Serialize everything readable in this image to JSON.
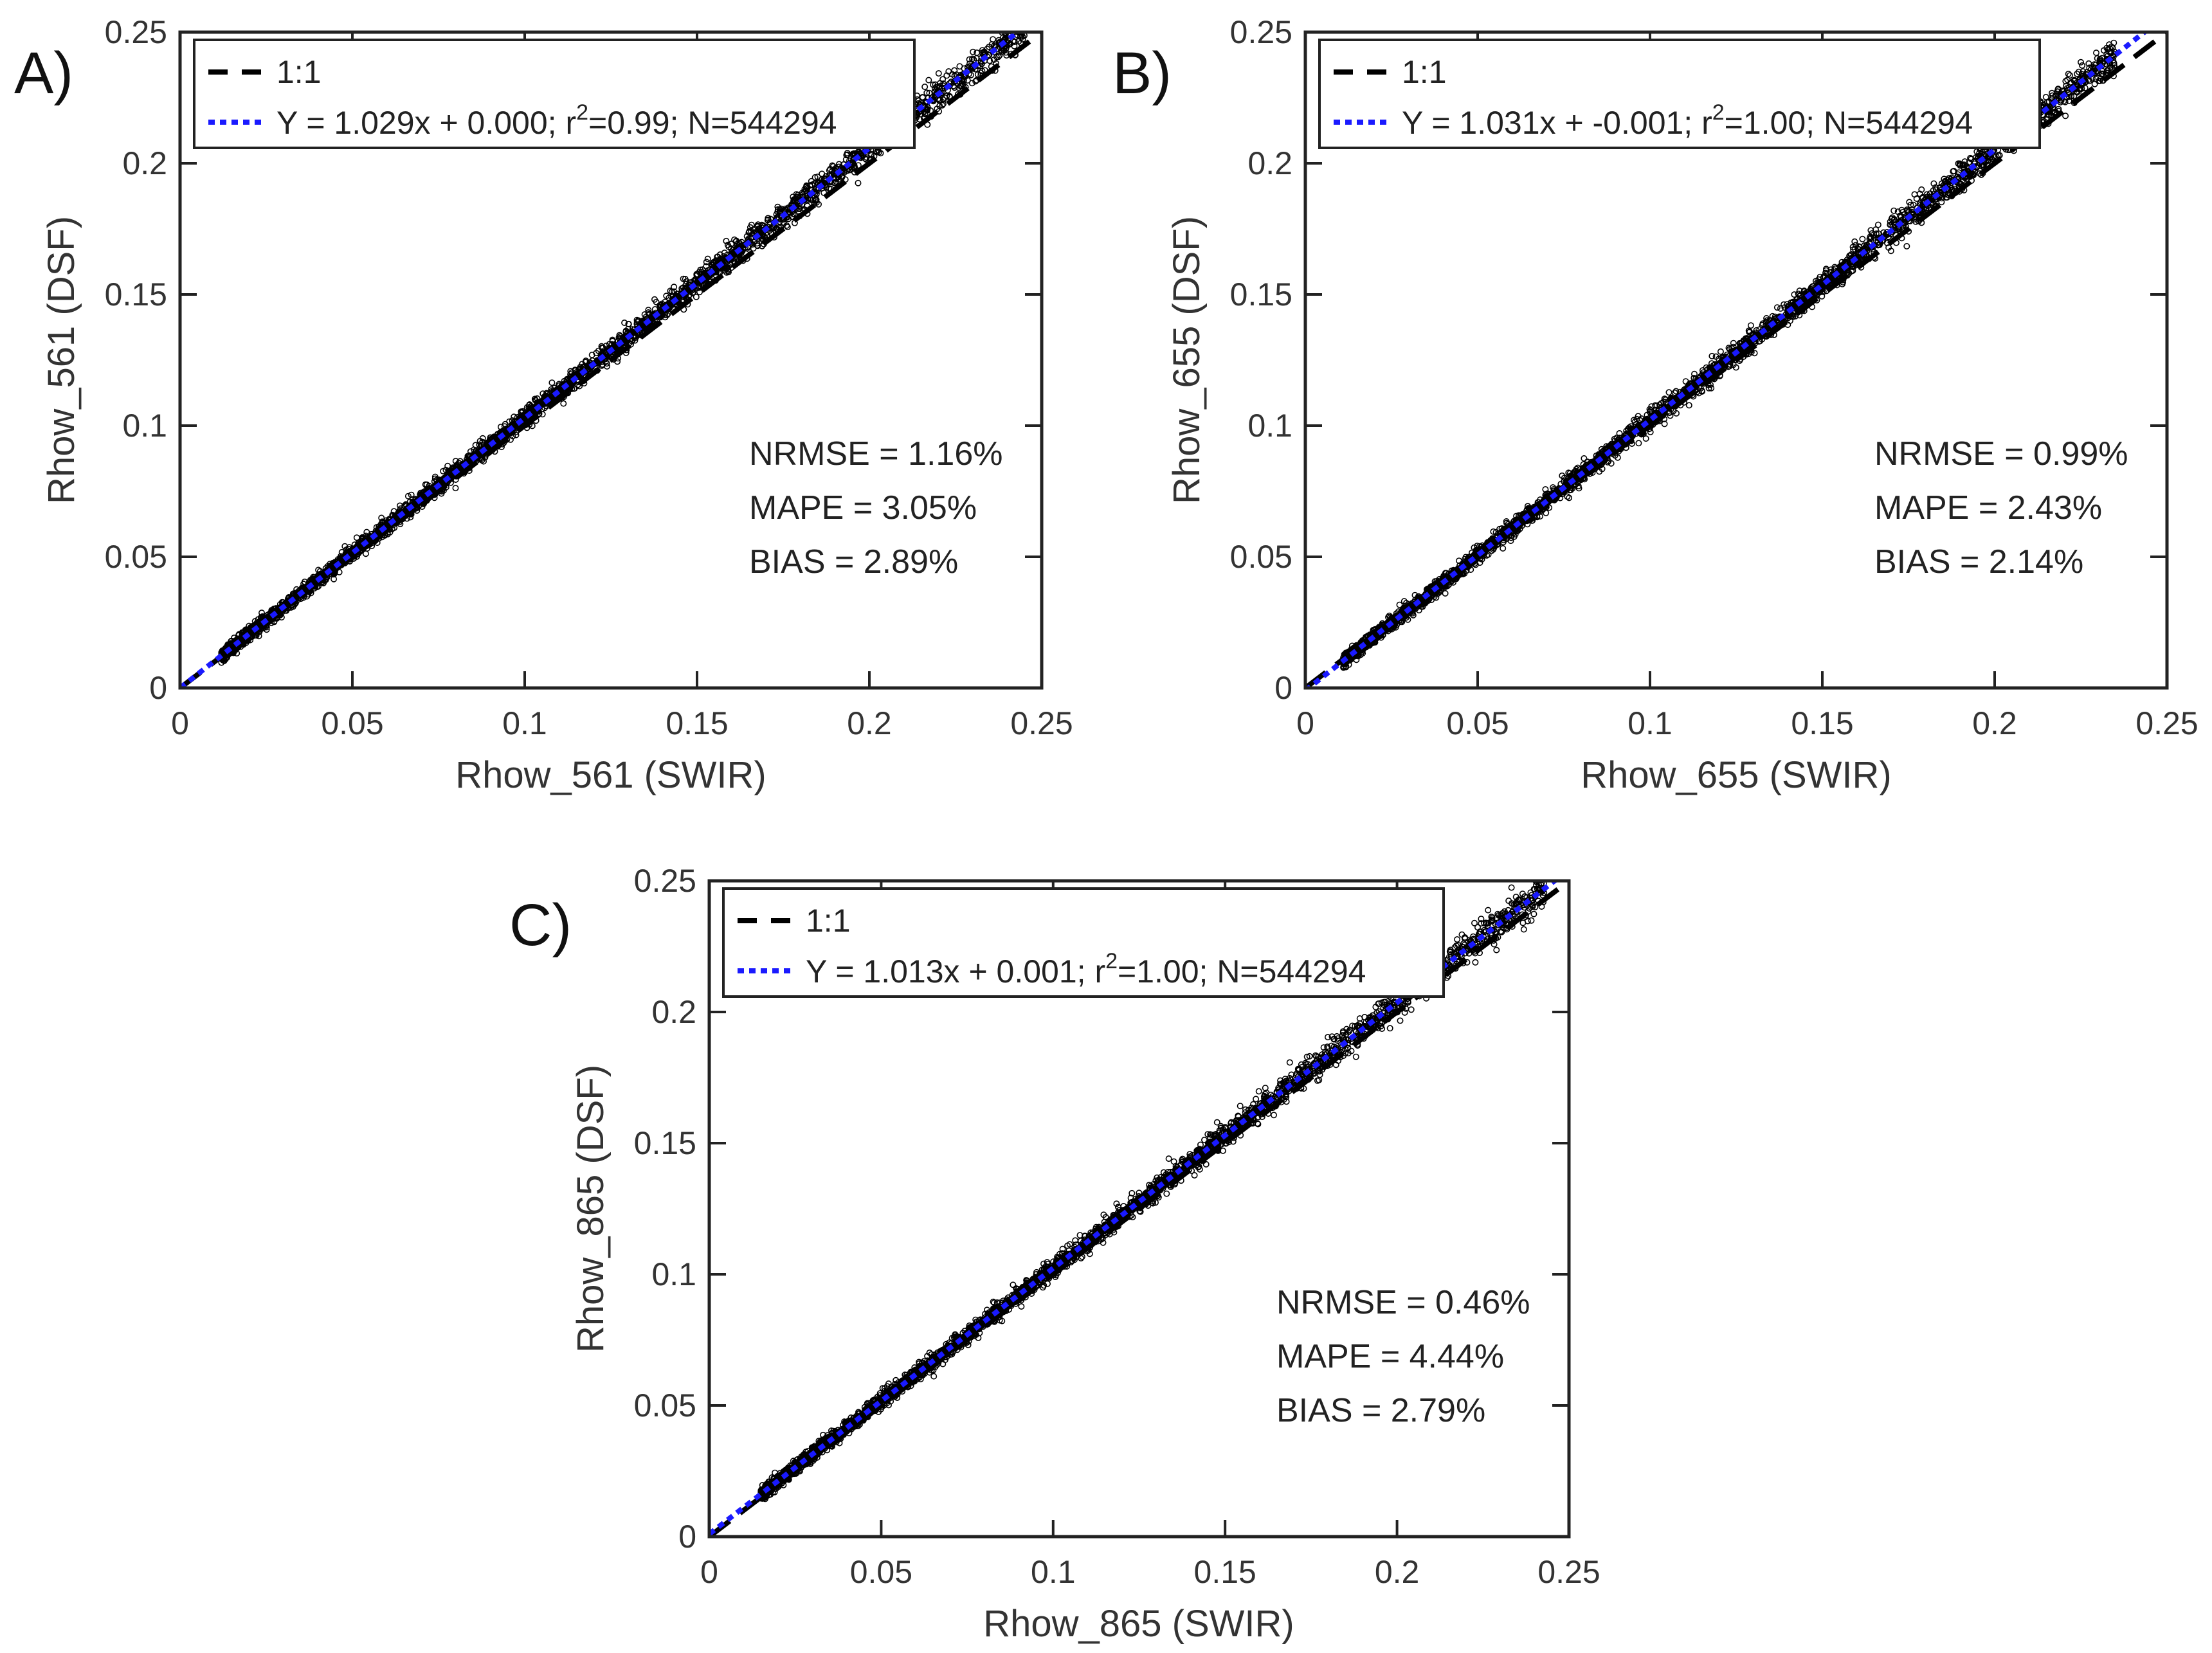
{
  "figure": {
    "panel_count": 3
  },
  "chart_data": [
    {
      "type": "scatter",
      "panel_label": "A)",
      "title": "",
      "xlabel": "Rhow_561 (SWIR)",
      "ylabel": "Rhow_561 (DSF)",
      "xlim": [
        0,
        0.25
      ],
      "ylim": [
        0,
        0.25
      ],
      "xticks": [
        "0",
        "0.05",
        "0.1",
        "0.15",
        "0.2",
        "0.25"
      ],
      "yticks": [
        "0",
        "0.05",
        "0.1",
        "0.15",
        "0.2",
        "0.25"
      ],
      "legend_position": "top-left",
      "legend": [
        {
          "label": "1:1",
          "style": "dashed",
          "color": "#000000"
        },
        {
          "label_prefix": "Y = 1.029x + 0.000; r",
          "label_sup": "2",
          "label_suffix": "=0.99; N=544294",
          "style": "dotted",
          "color": "#1a1aff"
        }
      ],
      "one_to_one": {
        "slope": 1.0,
        "intercept": 0.0
      },
      "fit": {
        "slope": 1.029,
        "intercept": 0.0,
        "r2": 0.99,
        "n": 544294
      },
      "scatter_range": [
        0.012,
        0.245
      ],
      "stats": [
        "NRMSE = 1.16%",
        "MAPE = 3.05%",
        "BIAS = 2.89%"
      ]
    },
    {
      "type": "scatter",
      "panel_label": "B)",
      "title": "",
      "xlabel": "Rhow_655 (SWIR)",
      "ylabel": "Rhow_655 (DSF)",
      "xlim": [
        0,
        0.25
      ],
      "ylim": [
        0,
        0.25
      ],
      "xticks": [
        "0",
        "0.05",
        "0.1",
        "0.15",
        "0.2",
        "0.25"
      ],
      "yticks": [
        "0",
        "0.05",
        "0.1",
        "0.15",
        "0.2",
        "0.25"
      ],
      "legend_position": "top-left",
      "legend": [
        {
          "label": "1:1",
          "style": "dashed",
          "color": "#000000"
        },
        {
          "label_prefix": "Y = 1.031x + -0.001; r",
          "label_sup": "2",
          "label_suffix": "=1.00; N=544294",
          "style": "dotted",
          "color": "#1a1aff"
        }
      ],
      "one_to_one": {
        "slope": 1.0,
        "intercept": 0.0
      },
      "fit": {
        "slope": 1.031,
        "intercept": -0.001,
        "r2": 1.0,
        "n": 544294
      },
      "scatter_range": [
        0.011,
        0.235
      ],
      "stats": [
        "NRMSE = 0.99%",
        "MAPE = 2.43%",
        "BIAS = 2.14%"
      ]
    },
    {
      "type": "scatter",
      "panel_label": "C)",
      "title": "",
      "xlabel": "Rhow_865 (SWIR)",
      "ylabel": "Rhow_865 (DSF)",
      "xlim": [
        0,
        0.25
      ],
      "ylim": [
        0,
        0.25
      ],
      "xticks": [
        "0",
        "0.05",
        "0.1",
        "0.15",
        "0.2",
        "0.25"
      ],
      "yticks": [
        "0",
        "0.05",
        "0.1",
        "0.15",
        "0.2",
        "0.25"
      ],
      "legend_position": "top-left",
      "legend": [
        {
          "label": "1:1",
          "style": "dashed",
          "color": "#000000"
        },
        {
          "label_prefix": "Y = 1.013x + 0.001; r",
          "label_sup": "2",
          "label_suffix": "=1.00; N=544294",
          "style": "dotted",
          "color": "#1a1aff"
        }
      ],
      "one_to_one": {
        "slope": 1.0,
        "intercept": 0.0
      },
      "fit": {
        "slope": 1.013,
        "intercept": 0.001,
        "r2": 1.0,
        "n": 544294
      },
      "scatter_range": [
        0.015,
        0.243
      ],
      "stats": [
        "NRMSE = 0.46%",
        "MAPE = 4.44%",
        "BIAS = 2.79%"
      ]
    }
  ]
}
